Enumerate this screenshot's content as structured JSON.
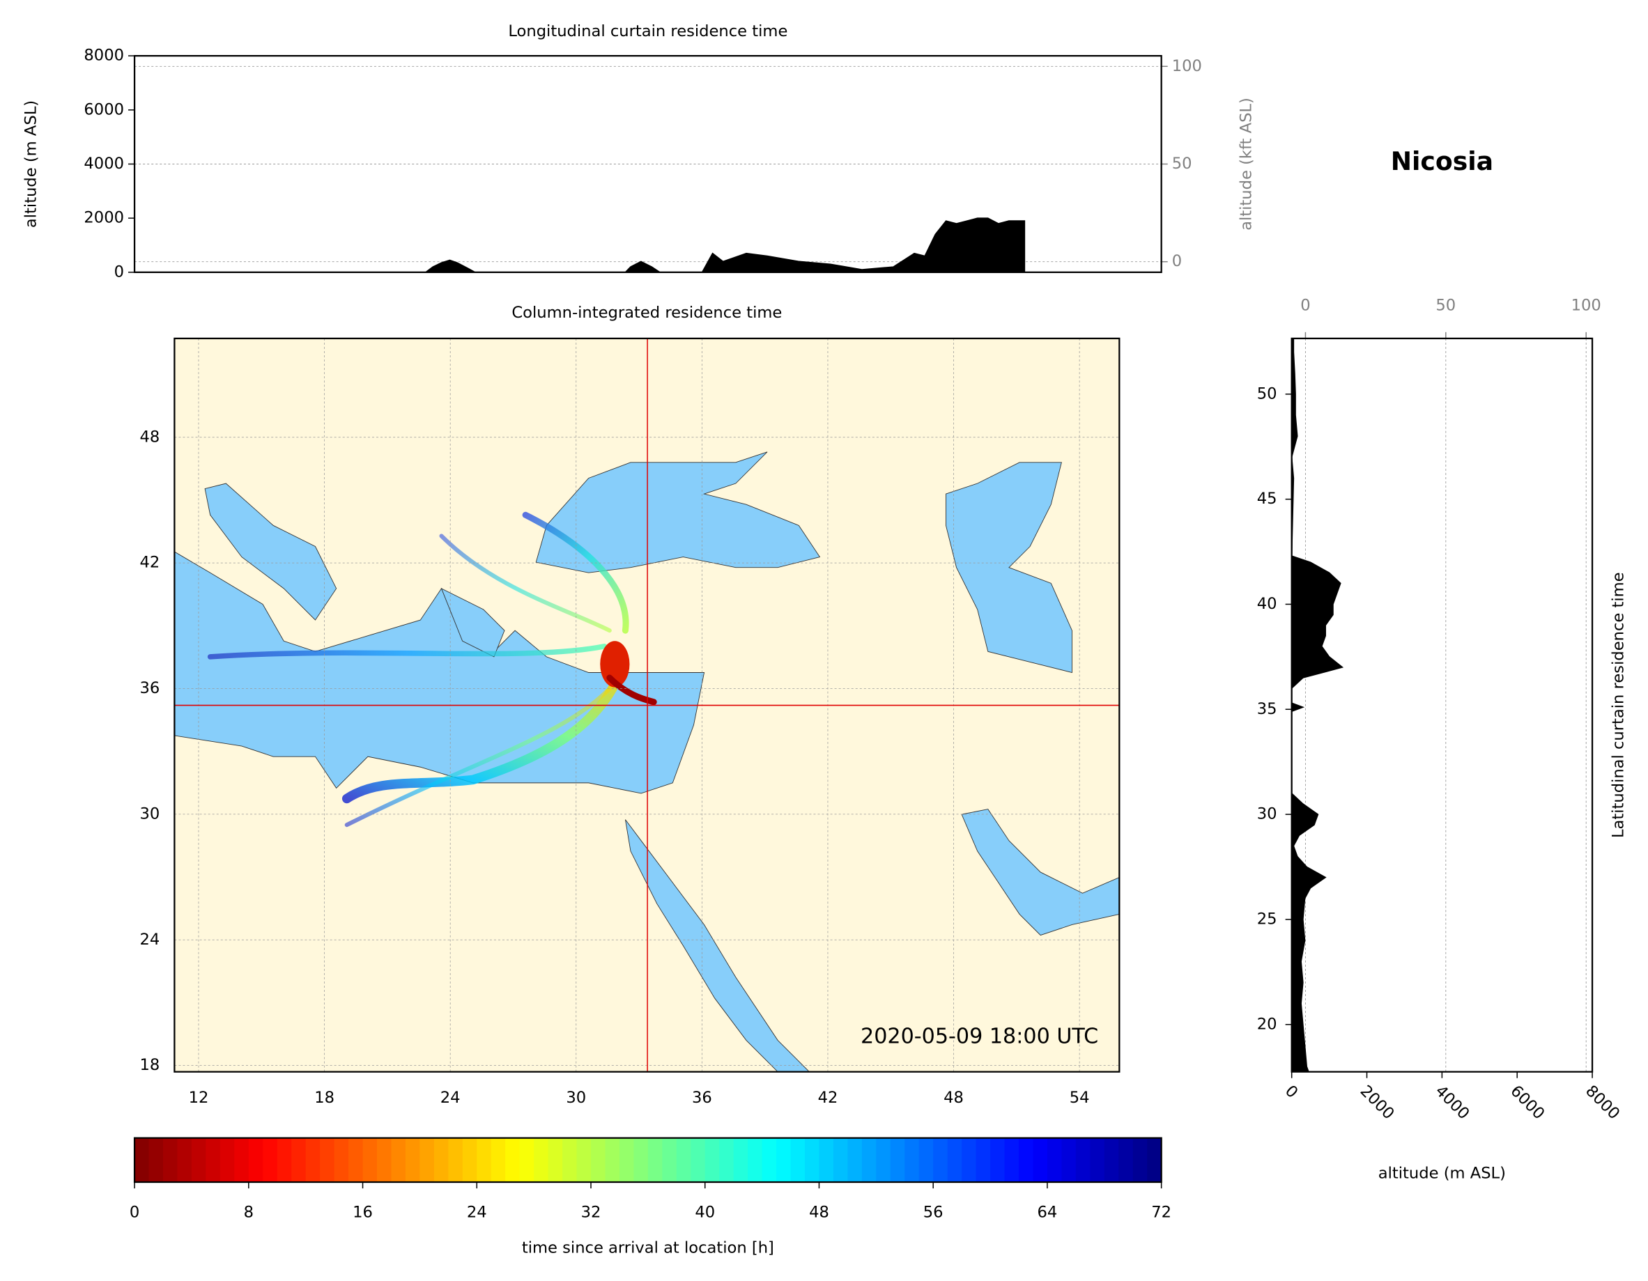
{
  "title": "Nicosia",
  "chart_data": [
    {
      "type": "area",
      "title": "Longitudinal curtain residence time",
      "y_label": "altitude (m ASL)",
      "y2_label": "altitude (kft ASL)",
      "x": [
        23.62,
        23.94,
        24.31,
        24.68,
        25.01,
        25.47,
        25.79,
        32.38,
        32.61,
        33.07,
        33.54,
        33.9,
        35.75,
        36.21,
        36.67,
        37.69,
        38.61,
        40.0,
        41.38,
        42.76,
        44.14,
        45.06,
        45.52,
        45.98,
        46.45,
        46.91,
        47.37,
        47.83,
        48.29,
        48.75,
        49.21,
        49.67,
        49.9
      ],
      "values": [
        0,
        200,
        350,
        450,
        350,
        150,
        0,
        0,
        200,
        400,
        200,
        0,
        0,
        700,
        400,
        700,
        600,
        400,
        300,
        100,
        200,
        700,
        600,
        1400,
        1900,
        1800,
        1900,
        2000,
        2000,
        1800,
        1900,
        1900,
        1900
      ],
      "color": "#000000",
      "xlim": [
        10.85,
        55.9
      ],
      "ylim": [
        0,
        8000
      ],
      "yticks": [
        0,
        2000,
        4000,
        6000,
        8000
      ],
      "y2lim": [
        -5.4,
        105.4
      ],
      "y2ticks": [
        0,
        50,
        100
      ],
      "grid": true
    },
    {
      "type": "map",
      "title": "Column-integrated residence time",
      "annotation": "2020-05-09 18:00 UTC",
      "xlim": [
        10.85,
        55.9
      ],
      "ylim": [
        17.7,
        52.72
      ],
      "xticks": [
        12,
        18,
        24,
        30,
        36,
        42,
        48,
        54
      ],
      "yticks": [
        18,
        24,
        30,
        36,
        42,
        48
      ],
      "marker": {
        "lon": 33.4,
        "lat": 35.2,
        "color": "#e00000"
      },
      "land_color": "#fff8dc",
      "sea_color": "#87cefa",
      "grid": true
    },
    {
      "type": "colorbar",
      "label": "time since arrival at location [h]",
      "colormap": "jet_r",
      "xlim": [
        0,
        72
      ],
      "xticks": [
        0,
        8,
        16,
        24,
        32,
        40,
        48,
        56,
        64,
        72
      ]
    },
    {
      "type": "harea",
      "title": "Latitudinal curtain residence time",
      "x_label": "altitude (m ASL)",
      "y": [
        17.75,
        18,
        19,
        20,
        21,
        22,
        23,
        24,
        25,
        26,
        26.5,
        27,
        27.5,
        28,
        28.5,
        29,
        29.5,
        30,
        30.5,
        31,
        34.9,
        35.1,
        35.3,
        36,
        36.5,
        37,
        37.5,
        38,
        38.5,
        39,
        39.5,
        40,
        40.5,
        41,
        41.5,
        42,
        42.3,
        46,
        47,
        48,
        49,
        50,
        51,
        52,
        52.6
      ],
      "values": [
        450,
        400,
        350,
        300,
        250,
        300,
        250,
        350,
        300,
        350,
        500,
        900,
        400,
        150,
        50,
        200,
        600,
        700,
        300,
        0,
        0,
        300,
        0,
        0,
        300,
        1350,
        1000,
        800,
        900,
        900,
        1100,
        1100,
        1200,
        1300,
        1000,
        500,
        0,
        50,
        0,
        150,
        100,
        100,
        80,
        50,
        50
      ],
      "color": "#000000",
      "xlim": [
        0,
        8000
      ],
      "xticks": [
        0,
        2000,
        4000,
        6000,
        8000
      ],
      "x2lim": [
        -4.9,
        102.2
      ],
      "x2ticks": [
        0,
        50,
        100
      ],
      "ylim": [
        17.75,
        52.65
      ],
      "yticks": [
        20,
        25,
        30,
        35,
        40,
        45,
        50
      ],
      "grid": true
    }
  ]
}
